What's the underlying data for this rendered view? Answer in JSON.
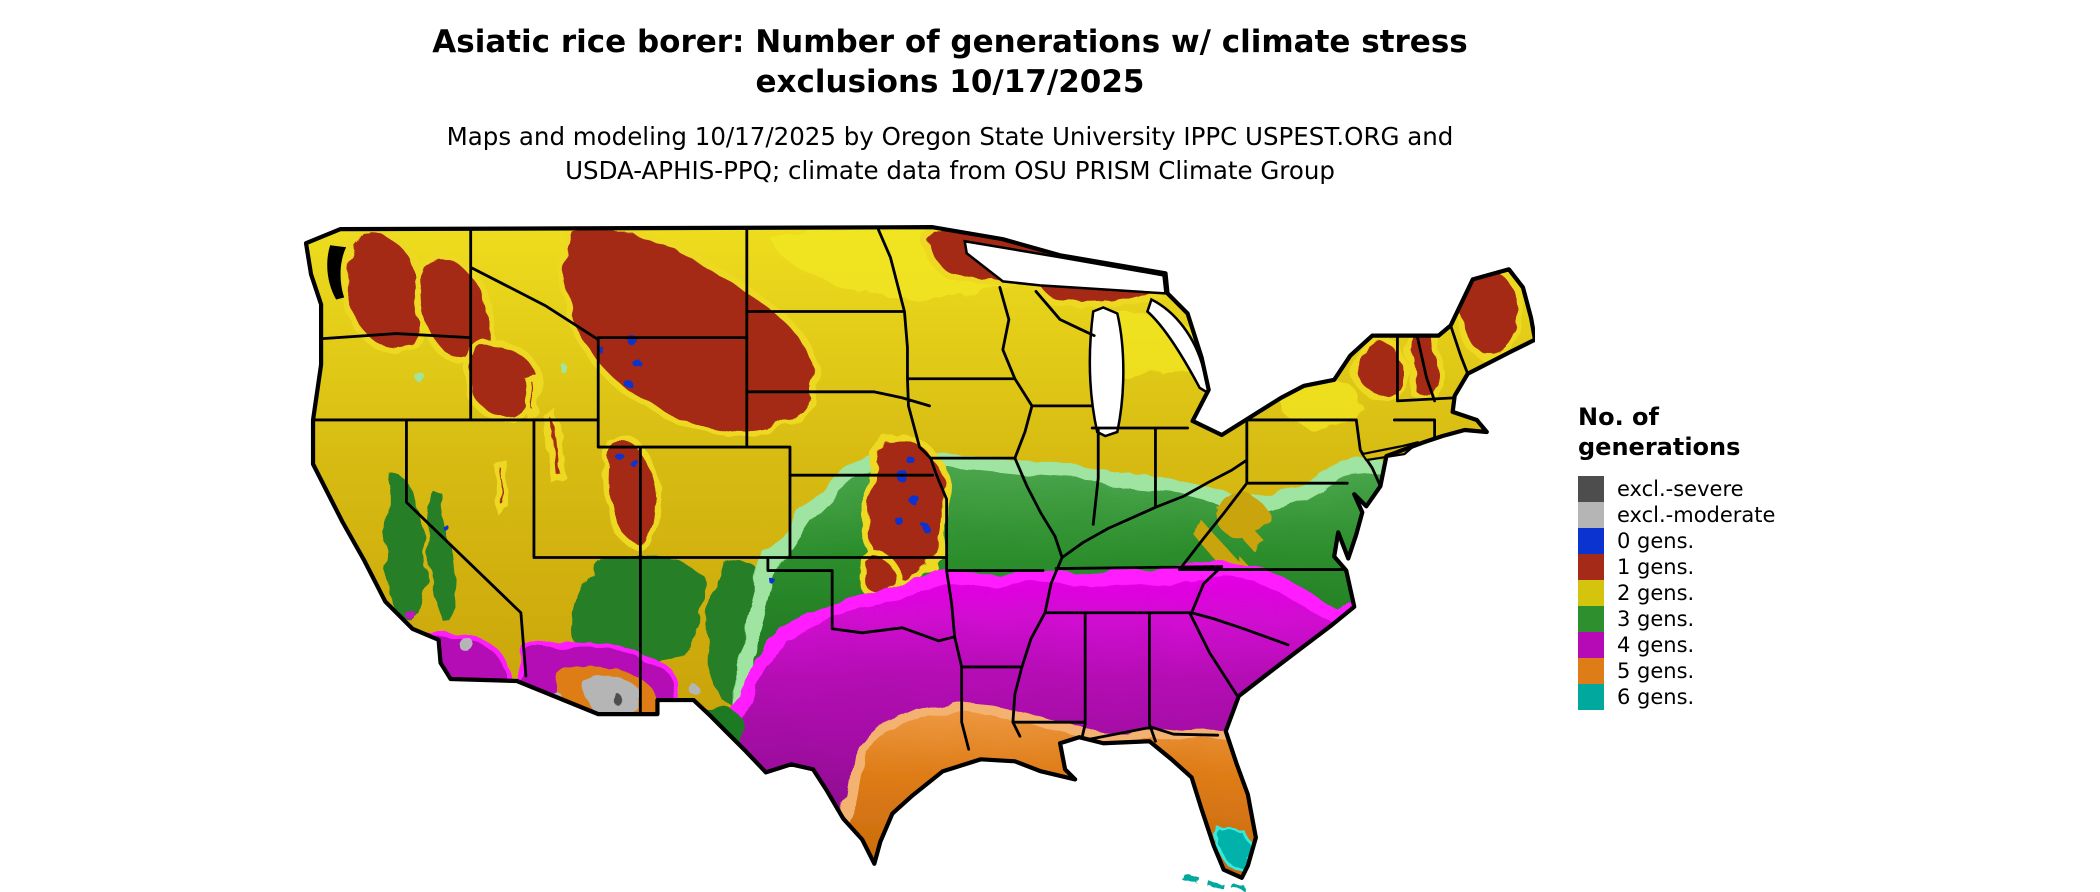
{
  "header": {
    "title_line1": "Asiatic rice borer: Number of generations w/ climate stress",
    "title_line2": "exclusions 10/17/2025",
    "subtitle_line1": "Maps and modeling 10/17/2025 by Oregon State University IPPC USPEST.ORG and",
    "subtitle_line2": "USDA-APHIS-PPQ; climate data from OSU PRISM Climate Group"
  },
  "legend": {
    "title_line1": "No. of",
    "title_line2": "generations",
    "items": [
      {
        "label": "excl.-severe",
        "color": "#4d4d4d"
      },
      {
        "label": "excl.-moderate",
        "color": "#b5b5b5"
      },
      {
        "label": "0 gens.",
        "color": "#0b33cf"
      },
      {
        "label": "1 gens.",
        "color": "#a52a18"
      },
      {
        "label": "2 gens.",
        "color": "#d4c40e"
      },
      {
        "label": "3 gens.",
        "color": "#2d8f2d"
      },
      {
        "label": "4 gens.",
        "color": "#b50ab5"
      },
      {
        "label": "5 gens.",
        "color": "#de7c17"
      },
      {
        "label": "6 gens.",
        "color": "#00a89d"
      }
    ]
  },
  "map": {
    "palette": {
      "excl_severe": "#4d4d4d",
      "excl_moderate": "#b5b5b5",
      "gens0_blue": "#0b33cf",
      "gens1_red": "#a52a18",
      "gens2_yellow": "#d4c40e",
      "gens3_green": "#2d8f2d",
      "gens4_magenta": "#b50ab5",
      "gens5_orange": "#de7c17",
      "gens6_teal": "#00a89d",
      "state_border": "#000000",
      "background": "#ffffff"
    }
  }
}
